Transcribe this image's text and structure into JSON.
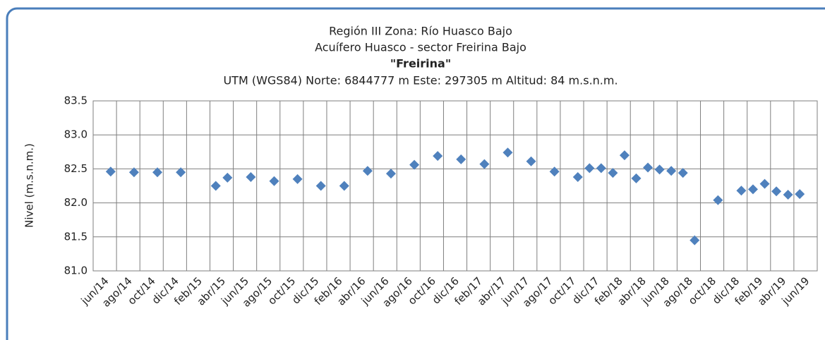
{
  "chart_data": {
    "type": "scatter",
    "title": [
      "Región III  Zona: Río Huasco Bajo",
      "Acuífero Huasco - sector Freirina Bajo",
      "\"Freirina\"",
      "UTM (WGS84) Norte: 6844777 m  Este: 297305 m   Altitud: 84 m.s.n.m."
    ],
    "y_label": "Nivel (m.s.n.m.)",
    "x": [
      "2014-06",
      "2014-08",
      "2014-10",
      "2014-12",
      "2015-03",
      "2015-04",
      "2015-06",
      "2015-08",
      "2015-10",
      "2015-12",
      "2016-02",
      "2016-04",
      "2016-06",
      "2016-08",
      "2016-10",
      "2016-12",
      "2017-02",
      "2017-04",
      "2017-06",
      "2017-08",
      "2017-10",
      "2017-11",
      "2017-12",
      "2018-01",
      "2018-02",
      "2018-03",
      "2018-04",
      "2018-05",
      "2018-06",
      "2018-07",
      "2018-08",
      "2018-10",
      "2018-12",
      "2019-01",
      "2019-02",
      "2019-03",
      "2019-04",
      "2019-05"
    ],
    "values": [
      82.46,
      82.45,
      82.45,
      82.45,
      82.25,
      82.37,
      82.38,
      82.32,
      82.35,
      82.25,
      82.25,
      82.47,
      82.43,
      82.56,
      82.69,
      82.64,
      82.57,
      82.74,
      82.61,
      82.46,
      82.38,
      82.51,
      82.51,
      82.44,
      82.7,
      82.36,
      82.52,
      82.49,
      82.47,
      82.44,
      81.45,
      82.04,
      82.18,
      82.2,
      82.28,
      82.17,
      82.12,
      82.13
    ],
    "color": "#4f81bd",
    "xlim": [
      "2014-05",
      "2019-07"
    ],
    "xticks": [
      {
        "value": "2014-06",
        "label": "jun/14"
      },
      {
        "value": "2014-08",
        "label": "ago/14"
      },
      {
        "value": "2014-10",
        "label": "oct/14"
      },
      {
        "value": "2014-12",
        "label": "dic/14"
      },
      {
        "value": "2015-02",
        "label": "feb/15"
      },
      {
        "value": "2015-04",
        "label": "abr/15"
      },
      {
        "value": "2015-06",
        "label": "jun/15"
      },
      {
        "value": "2015-08",
        "label": "ago/15"
      },
      {
        "value": "2015-10",
        "label": "oct/15"
      },
      {
        "value": "2015-12",
        "label": "dic/15"
      },
      {
        "value": "2016-02",
        "label": "feb/16"
      },
      {
        "value": "2016-04",
        "label": "abr/16"
      },
      {
        "value": "2016-06",
        "label": "jun/16"
      },
      {
        "value": "2016-08",
        "label": "ago/16"
      },
      {
        "value": "2016-10",
        "label": "oct/16"
      },
      {
        "value": "2016-12",
        "label": "dic/16"
      },
      {
        "value": "2017-02",
        "label": "feb/17"
      },
      {
        "value": "2017-04",
        "label": "abr/17"
      },
      {
        "value": "2017-06",
        "label": "jun/17"
      },
      {
        "value": "2017-08",
        "label": "ago/17"
      },
      {
        "value": "2017-10",
        "label": "oct/17"
      },
      {
        "value": "2017-12",
        "label": "dic/17"
      },
      {
        "value": "2018-02",
        "label": "feb/18"
      },
      {
        "value": "2018-04",
        "label": "abr/18"
      },
      {
        "value": "2018-06",
        "label": "jun/18"
      },
      {
        "value": "2018-08",
        "label": "ago/18"
      },
      {
        "value": "2018-10",
        "label": "oct/18"
      },
      {
        "value": "2018-12",
        "label": "dic/18"
      },
      {
        "value": "2019-02",
        "label": "feb/19"
      },
      {
        "value": "2019-04",
        "label": "abr/19"
      },
      {
        "value": "2019-06",
        "label": "jun/19"
      }
    ],
    "ylim": [
      81,
      83.5
    ],
    "yticks": [
      {
        "value": 81,
        "label": "81.0"
      },
      81.5,
      {
        "value": 82,
        "label": "82.0"
      },
      82.5,
      {
        "value": 83,
        "label": "83.0"
      },
      83.5
    ],
    "grid": true
  }
}
